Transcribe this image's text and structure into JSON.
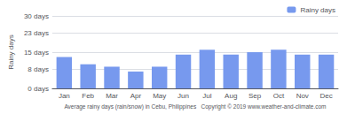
{
  "chart_data": {
    "type": "bar",
    "categories": [
      "Jan",
      "Feb",
      "Mar",
      "Apr",
      "May",
      "Jun",
      "Jul",
      "Aug",
      "Sep",
      "Oct",
      "Nov",
      "Dec"
    ],
    "series": [
      {
        "name": "Rainy days",
        "color": "#7799ee",
        "values": [
          13,
          10,
          9,
          7,
          9,
          14,
          16,
          14,
          15,
          16,
          14,
          14
        ]
      }
    ],
    "ylabel": "Rainy days",
    "xlabel": "Average rainy days (rain/snow) in Cebu, Philippines   Copyright © 2019 www.weather-and-climate.com",
    "ylim": [
      0,
      30
    ],
    "yticks": [
      {
        "value": 0,
        "label": "0 days"
      },
      {
        "value": 8,
        "label": "8 days"
      },
      {
        "value": 15,
        "label": "15 days"
      },
      {
        "value": 23,
        "label": "23 days"
      },
      {
        "value": 30,
        "label": "30 days"
      }
    ],
    "grid": true,
    "legend": "upper right"
  }
}
